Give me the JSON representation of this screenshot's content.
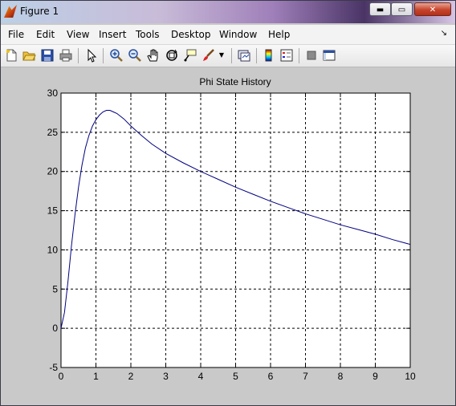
{
  "window": {
    "title": "Figure 1",
    "minimize_glyph": "▬",
    "maximize_glyph": "▭",
    "close_glyph": "✕"
  },
  "menu": {
    "items": [
      "File",
      "Edit",
      "View",
      "Insert",
      "Tools",
      "Desktop",
      "Window",
      "Help"
    ],
    "overflow_glyph": "↘"
  },
  "toolbar": {
    "icons": [
      "new-figure-icon",
      "open-file-icon",
      "save-icon",
      "print-icon",
      "pointer-icon",
      "zoom-in-icon",
      "zoom-out-icon",
      "pan-hand-icon",
      "rotate-3d-icon",
      "data-cursor-icon",
      "brush-icon",
      "brush-dropdown-icon",
      "link-plot-icon",
      "colorbar-icon",
      "legend-icon",
      "hide-plot-tools-icon",
      "show-plot-tools-icon"
    ]
  },
  "chart_data": {
    "type": "line",
    "title": "Phi State History",
    "xlabel": "",
    "ylabel": "",
    "xlim": [
      0,
      10
    ],
    "ylim": [
      -5,
      30
    ],
    "xticks": [
      0,
      1,
      2,
      3,
      4,
      5,
      6,
      7,
      8,
      9,
      10
    ],
    "yticks": [
      -5,
      0,
      5,
      10,
      15,
      20,
      25,
      30
    ],
    "grid": true,
    "grid_style": "dashed",
    "line_color": "#000080",
    "series": [
      {
        "x": [
          0,
          0.1,
          0.2,
          0.3,
          0.4,
          0.5,
          0.6,
          0.7,
          0.8,
          0.9,
          1.0,
          1.1,
          1.2,
          1.3,
          1.4,
          1.5,
          1.6,
          1.8,
          2.0,
          2.3,
          2.6,
          3.0,
          3.5,
          4.0,
          4.5,
          5.0,
          5.5,
          6.0,
          6.5,
          7.0,
          7.5,
          8.0,
          8.5,
          9.0,
          9.5,
          10.0
        ],
        "y": [
          0,
          2,
          6,
          10.5,
          14.5,
          18,
          20.8,
          23,
          24.6,
          25.8,
          26.6,
          27.2,
          27.6,
          27.8,
          27.8,
          27.6,
          27.4,
          26.7,
          25.8,
          24.6,
          23.5,
          22.3,
          21.1,
          20.0,
          19.0,
          18.0,
          17.1,
          16.2,
          15.4,
          14.6,
          13.9,
          13.2,
          12.6,
          12.0,
          11.3,
          10.7
        ]
      }
    ]
  }
}
